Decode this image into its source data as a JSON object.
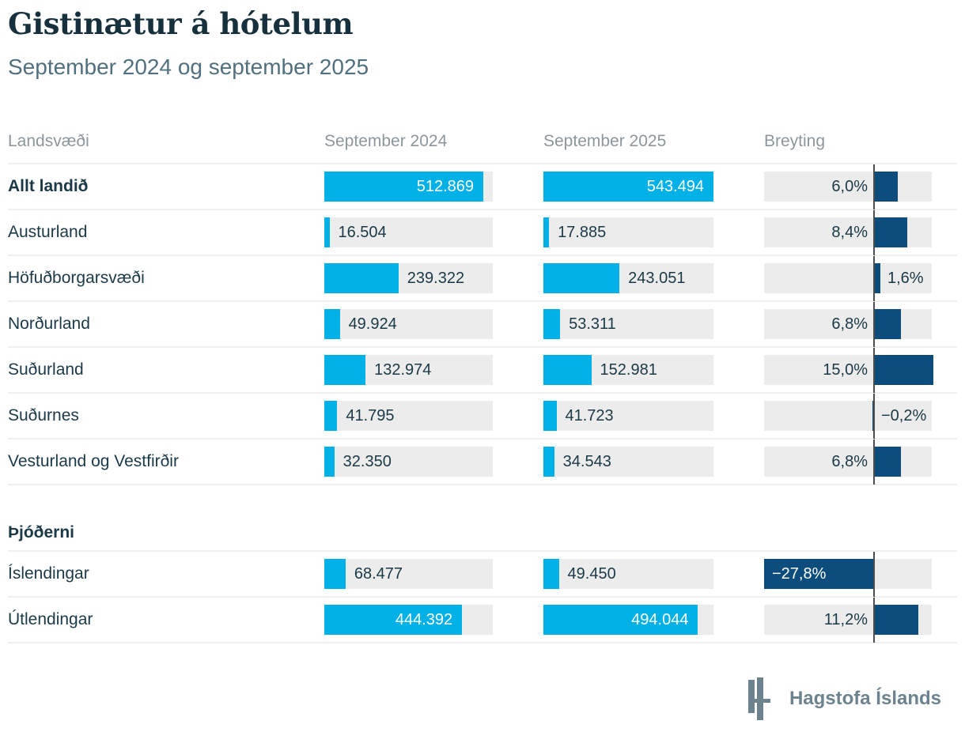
{
  "page": {
    "title": "Gistinætur á hótelum",
    "subtitle": "September 2024 og september 2025",
    "footer": {
      "logo_text": "Hagstofa Íslands",
      "logo_icon": "hagstofa-h-mark"
    }
  },
  "colors": {
    "bar_blue": "#00b1e8",
    "bar_navy": "#0d4d7d",
    "track_gray": "#ececec",
    "text_dark": "#1b3947",
    "header_gray": "#8c969d",
    "axis_gray": "#4d4d4d",
    "logo_gray": "#6d828f"
  },
  "chart_data": {
    "type": "bar",
    "title": "Gistinætur á hótelum",
    "subtitle": "September 2024 og september 2025",
    "columns": [
      "Landsvæði",
      "September 2024",
      "September 2025",
      "Breyting"
    ],
    "value_axis_max": 543494,
    "change_axis": {
      "min_pct": -27.8,
      "max_pct": 14.6
    },
    "legend_position": "none",
    "grid": false,
    "sections": [
      {
        "header": "",
        "rows": [
          {
            "label": "Allt landið",
            "bold": true,
            "sep2024": 512869,
            "sep2024_label": "512.869",
            "sep2025": 543494,
            "sep2025_label": "543.494",
            "change_pct": 6.0,
            "change_label": "6,0%"
          },
          {
            "label": "Austurland",
            "bold": false,
            "sep2024": 16504,
            "sep2024_label": "16.504",
            "sep2025": 17885,
            "sep2025_label": "17.885",
            "change_pct": 8.4,
            "change_label": "8,4%"
          },
          {
            "label": "Höfuðborgarsvæði",
            "bold": false,
            "sep2024": 239322,
            "sep2024_label": "239.322",
            "sep2025": 243051,
            "sep2025_label": "243.051",
            "change_pct": 1.6,
            "change_label": "1,6%"
          },
          {
            "label": "Norðurland",
            "bold": false,
            "sep2024": 49924,
            "sep2024_label": "49.924",
            "sep2025": 53311,
            "sep2025_label": "53.311",
            "change_pct": 6.8,
            "change_label": "6,8%"
          },
          {
            "label": "Suðurland",
            "bold": false,
            "sep2024": 132974,
            "sep2024_label": "132.974",
            "sep2025": 152981,
            "sep2025_label": "152.981",
            "change_pct": 15.0,
            "change_label": "15,0%"
          },
          {
            "label": "Suðurnes",
            "bold": false,
            "sep2024": 41795,
            "sep2024_label": "41.795",
            "sep2025": 41723,
            "sep2025_label": "41.723",
            "change_pct": -0.2,
            "change_label": "−0,2%"
          },
          {
            "label": "Vesturland og Vestfirðir",
            "bold": false,
            "sep2024": 32350,
            "sep2024_label": "32.350",
            "sep2025": 34543,
            "sep2025_label": "34.543",
            "change_pct": 6.8,
            "change_label": "6,8%"
          }
        ]
      },
      {
        "header": "Þjóðerni",
        "rows": [
          {
            "label": "Íslendingar",
            "bold": false,
            "sep2024": 68477,
            "sep2024_label": "68.477",
            "sep2025": 49450,
            "sep2025_label": "49.450",
            "change_pct": -27.8,
            "change_label": "−27,8%"
          },
          {
            "label": "Útlendingar",
            "bold": false,
            "sep2024": 444392,
            "sep2024_label": "444.392",
            "sep2025": 494044,
            "sep2025_label": "494.044",
            "change_pct": 11.2,
            "change_label": "11,2%"
          }
        ]
      }
    ]
  }
}
